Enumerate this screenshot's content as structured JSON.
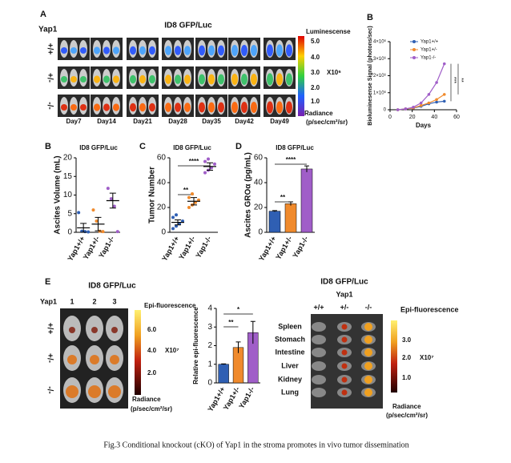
{
  "panels": {
    "a": {
      "letter": "A",
      "gene": "Yap1",
      "title": "ID8 GFP/Luc",
      "rows": [
        "+/+",
        "+/-",
        "-/-"
      ],
      "days": [
        "Day7",
        "Day14",
        "Day21",
        "Day28",
        "Day35",
        "Day42",
        "Day49"
      ],
      "scale_title": "Luminescense",
      "scale_ticks": [
        "5.0",
        "4.0",
        "3.0",
        "2.0",
        "1.0"
      ],
      "scale_unit": "X10⁶",
      "radiance": "Radiance",
      "radiance_unit": "(p/sec/cm²/sr)"
    },
    "b_letter": "B",
    "b2_letter": "B",
    "c_letter": "C",
    "d_letter": "D",
    "e": {
      "letter": "E",
      "title": "ID8 GFP/Luc",
      "gene": "Yap1",
      "mice": [
        "1",
        "2",
        "3"
      ],
      "rows": [
        "+/+",
        "+/-",
        "-/-"
      ],
      "scale_title": "Epi-fluorescence",
      "scale_ticks": [
        "6.0",
        "4.0",
        "2.0"
      ],
      "scale_unit": "X10⁷",
      "radiance": "Radiance",
      "radiance_unit": "(p/sec/cm²/sr)"
    },
    "organs": {
      "title": "ID8 GFP/Luc",
      "gene": "Yap1",
      "columns": [
        "+/+",
        "+/-",
        "-/-"
      ],
      "labels": [
        "Spleen",
        "Stomach",
        "Intestine",
        "Liver",
        "Kidney",
        "Lung"
      ],
      "scale_title": "Epi-fluorescence",
      "scale_ticks": [
        "3.0",
        "2.0",
        "1.0"
      ],
      "scale_unit": "X10⁷",
      "radiance": "Radiance",
      "radiance_unit": "(p/sec/cm²/sr)"
    },
    "caption": "Fig.3 Conditional knockout (cKO) of Yap1 in the stroma promotes in vivo tumor dissemination"
  },
  "chart_data": [
    {
      "type": "line",
      "y_label": "Bioluminesense Signal (photons/sec)",
      "x_label": "Days",
      "x": [
        7,
        14,
        21,
        28,
        35,
        42,
        49
      ],
      "xlim": [
        0,
        60
      ],
      "xticks": [
        0,
        20,
        40,
        60
      ],
      "ylim": [
        0,
        4000000
      ],
      "yticks": [
        0,
        {
          "value": 1000000,
          "label": "1×10⁶"
        },
        {
          "value": 2000000,
          "label": "2×10⁶"
        },
        {
          "value": 3000000,
          "label": "3×10⁶"
        },
        {
          "value": 4000000,
          "label": "4×10⁶"
        }
      ],
      "series": [
        {
          "name": "Yap1+/+",
          "color": "#2f5fb3",
          "values": [
            0,
            50000,
            100000,
            200000,
            350000,
            450000,
            500000
          ]
        },
        {
          "name": "Yap1+/-",
          "color": "#f08a2c",
          "values": [
            0,
            50000,
            100000,
            250000,
            400000,
            600000,
            900000
          ]
        },
        {
          "name": "Yap1-/-",
          "color": "#a05ec8",
          "values": [
            0,
            50000,
            150000,
            400000,
            900000,
            1600000,
            2700000
          ]
        }
      ],
      "annotations": [
        "***",
        "**"
      ]
    },
    {
      "type": "dot",
      "title": "ID8 GFP/Luc",
      "y_label": "Ascites Volume (mL)",
      "categories": [
        "Yap1+/+",
        "Yap1+/-",
        "Yap1-/-"
      ],
      "colors": [
        "#2f5fb3",
        "#f08a2c",
        "#a05ec8"
      ],
      "values": [
        1.2,
        2.2,
        8.5
      ],
      "errors": [
        1.2,
        1.8,
        2.0
      ],
      "points": [
        [
          5.3,
          0.3,
          0.2,
          0.1
        ],
        [
          6.0,
          3.0,
          0.3,
          0.2
        ],
        [
          11.8,
          9.0,
          7.0,
          0.2
        ]
      ],
      "ylim": [
        0,
        20
      ],
      "yticks": [
        0,
        5,
        10,
        15,
        20
      ],
      "annotations": []
    },
    {
      "type": "dot",
      "title": "ID8 GFP/Luc",
      "y_label": "Tumor Number",
      "categories": [
        "Yap1+/+",
        "Yap1+/-",
        "Yap1-/-"
      ],
      "colors": [
        "#2f5fb3",
        "#f08a2c",
        "#a05ec8"
      ],
      "values": [
        8,
        25,
        53
      ],
      "errors": [
        2,
        3,
        3
      ],
      "points": [
        [
          3,
          5,
          7,
          9,
          12,
          14
        ],
        [
          20,
          22,
          24,
          26,
          28,
          31
        ],
        [
          48,
          50,
          52,
          55,
          57,
          59
        ]
      ],
      "ylim": [
        0,
        60
      ],
      "yticks": [
        0,
        20,
        40,
        60
      ],
      "annotations": [
        "**",
        "****"
      ]
    },
    {
      "type": "bar",
      "title": "ID8 GFP/Luc",
      "y_label": "Ascites GROα (pg/mL)",
      "categories": [
        "Yap1+/+",
        "Yap1+/-",
        "Yap1-/-"
      ],
      "colors": [
        "#2f5fb3",
        "#f08a2c",
        "#a05ec8"
      ],
      "values": [
        17,
        23,
        51
      ],
      "errors": [
        0.5,
        1.5,
        2.5
      ],
      "ylim": [
        0,
        60
      ],
      "yticks": [
        0,
        20,
        40,
        60
      ],
      "annotations": [
        "**",
        "****"
      ]
    },
    {
      "type": "bar",
      "y_label": "Relative epi-fluorescence",
      "categories": [
        "Yap1+/+",
        "Yap1+/-",
        "Yap1-/-"
      ],
      "colors": [
        "#2f5fb3",
        "#f08a2c",
        "#a05ec8"
      ],
      "values": [
        1,
        1.9,
        2.7
      ],
      "errors": [
        0.02,
        0.3,
        0.6
      ],
      "ylim": [
        0,
        4
      ],
      "yticks": [
        0,
        1,
        2,
        3,
        4
      ],
      "annotations": [
        "**",
        "*"
      ]
    }
  ]
}
